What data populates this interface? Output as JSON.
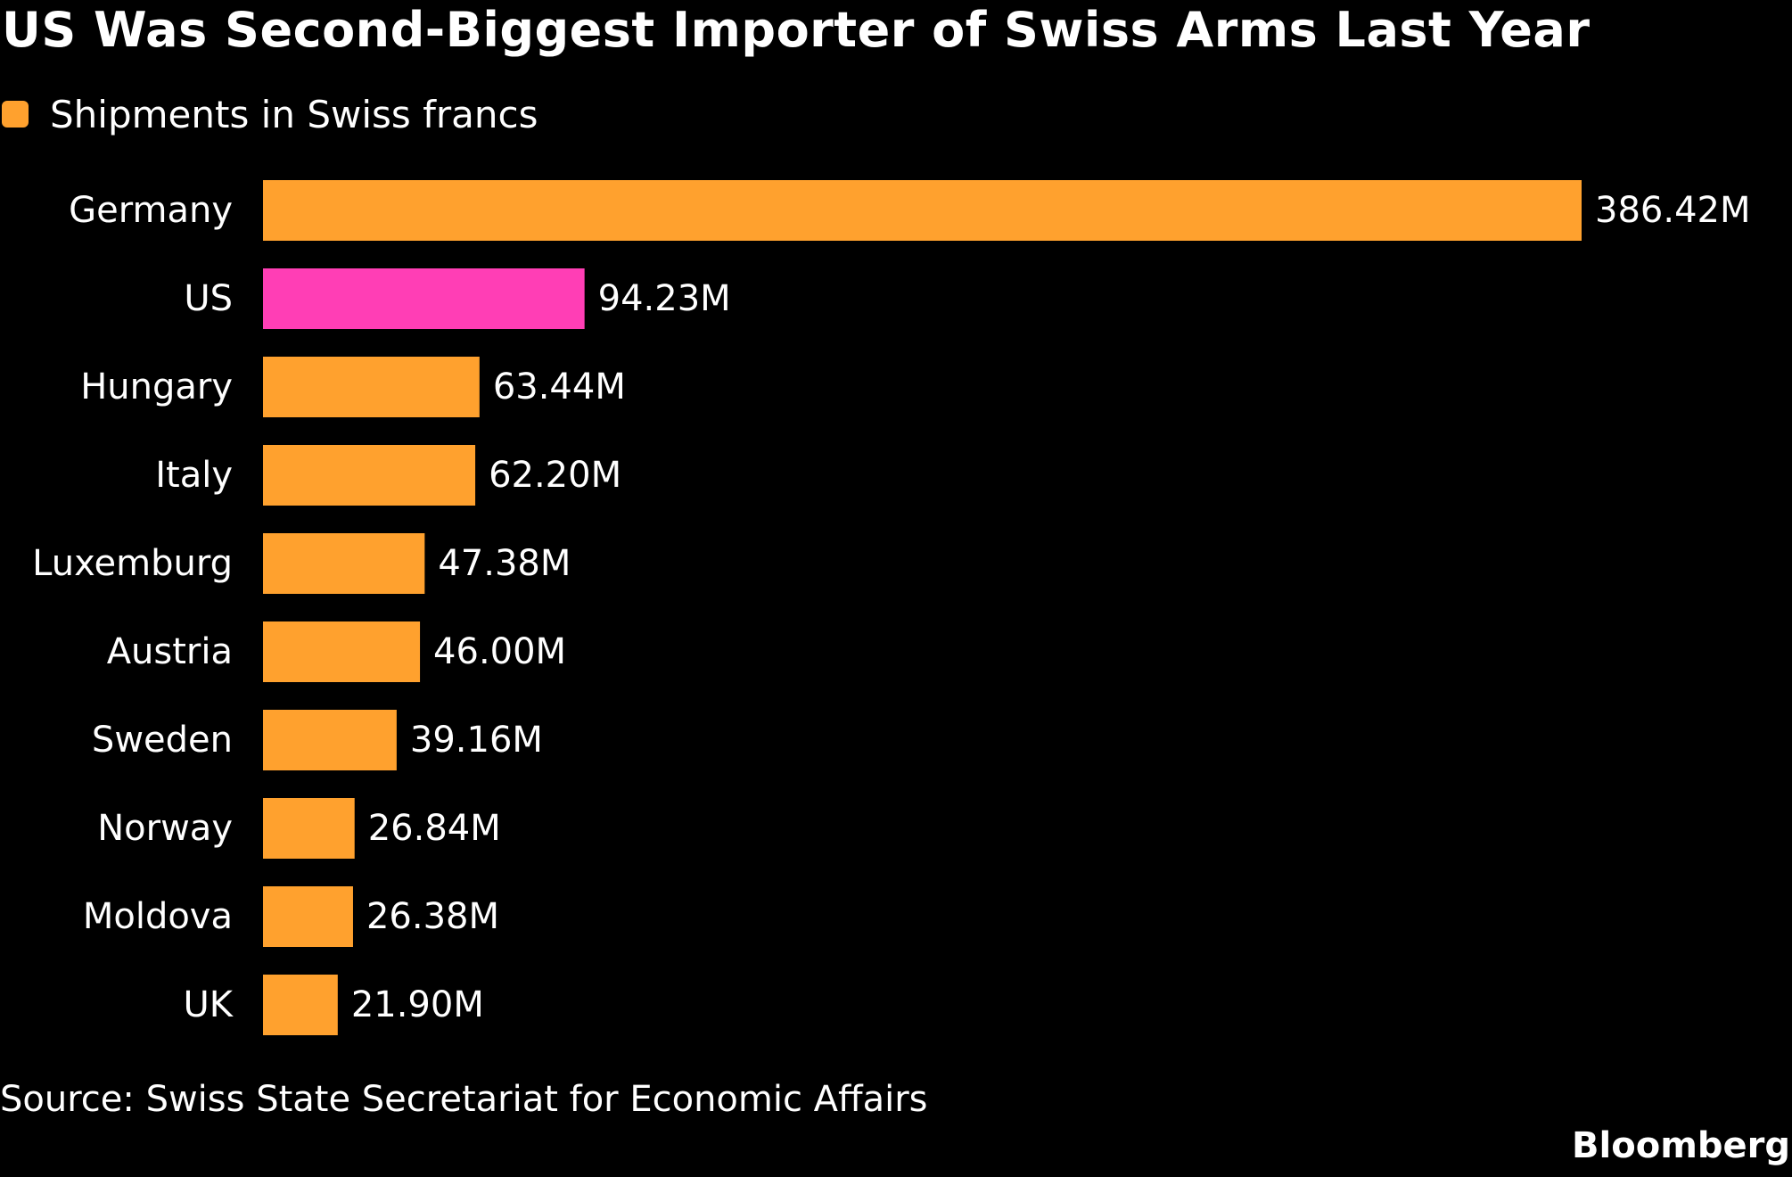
{
  "colors": {
    "background": "#000000",
    "bar": "#ffa12e",
    "highlight": "#ff3eb5",
    "text": "#ffffff"
  },
  "legend": {
    "label": "Shipments in Swiss francs"
  },
  "footer": {
    "source": "Source: Swiss State Secretariat for Economic Affairs",
    "brand": "Bloomberg"
  },
  "chart_data": {
    "type": "bar",
    "orientation": "horizontal",
    "title": "US Was Second-Biggest Importer of Swiss Arms Last Year",
    "xlabel": "",
    "ylabel": "",
    "categories": [
      "Germany",
      "US",
      "Hungary",
      "Italy",
      "Luxemburg",
      "Austria",
      "Sweden",
      "Norway",
      "Moldova",
      "UK"
    ],
    "series": [
      {
        "name": "Shipments in Swiss francs",
        "values": [
          386.42,
          94.23,
          63.44,
          62.2,
          47.38,
          46.0,
          39.16,
          26.84,
          26.38,
          21.9
        ],
        "labels": [
          "386.42M",
          "94.23M",
          "63.44M",
          "62.20M",
          "47.38M",
          "46.00M",
          "39.16M",
          "26.84M",
          "26.38M",
          "21.90M"
        ]
      }
    ],
    "highlight_category": "US",
    "xlim": [
      0,
      386.42
    ],
    "grid": false,
    "legend": "top-left"
  }
}
